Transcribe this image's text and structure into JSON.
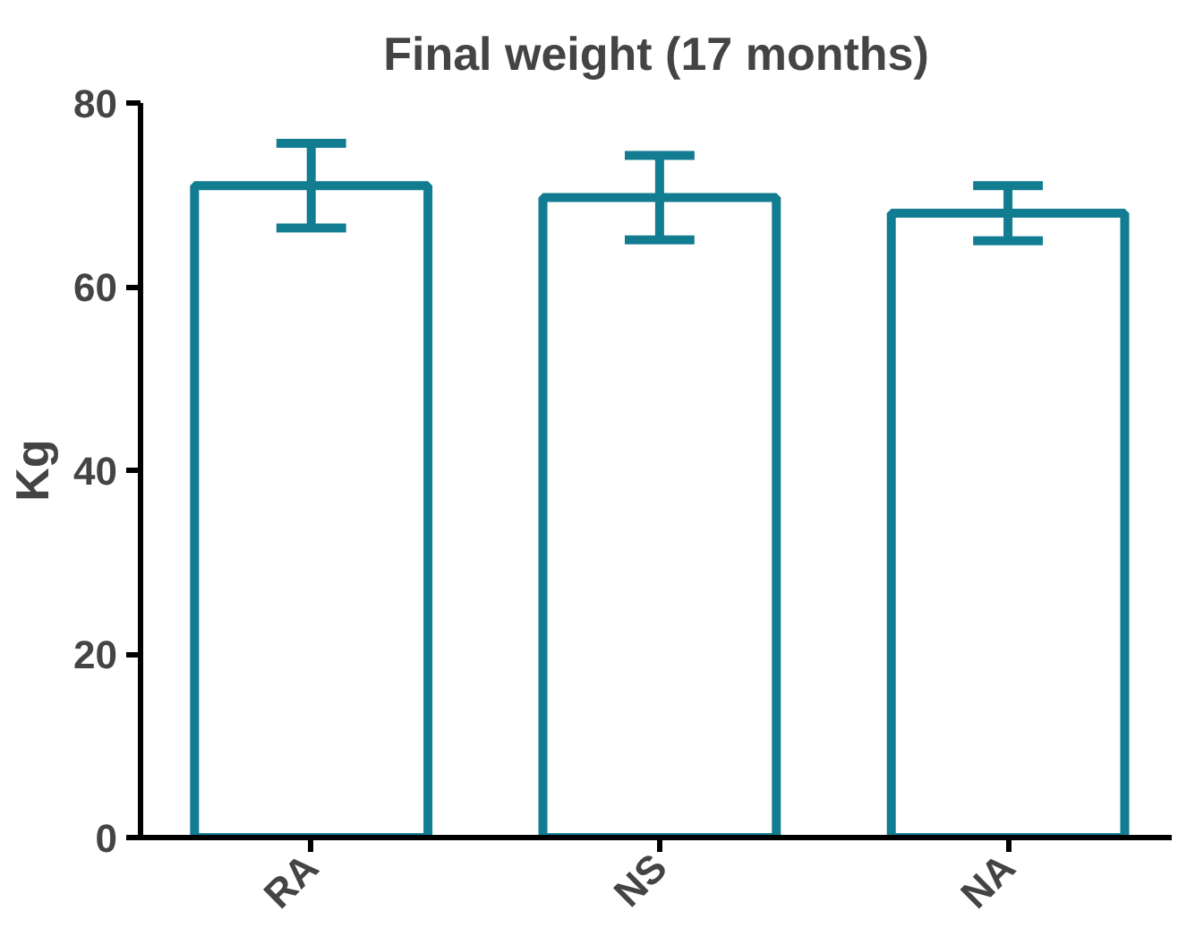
{
  "chart_data": {
    "type": "bar",
    "title": "Final weight (17 months)",
    "ylabel": "Kg",
    "categories": [
      "RA",
      "NS",
      "NA"
    ],
    "values": [
      71.0,
      69.7,
      68.0
    ],
    "errors": [
      4.6,
      4.6,
      3.0
    ],
    "color": "#127c91",
    "ylim": [
      0,
      80
    ],
    "yticks": [
      0,
      20,
      40,
      60,
      80
    ],
    "grid": false
  }
}
